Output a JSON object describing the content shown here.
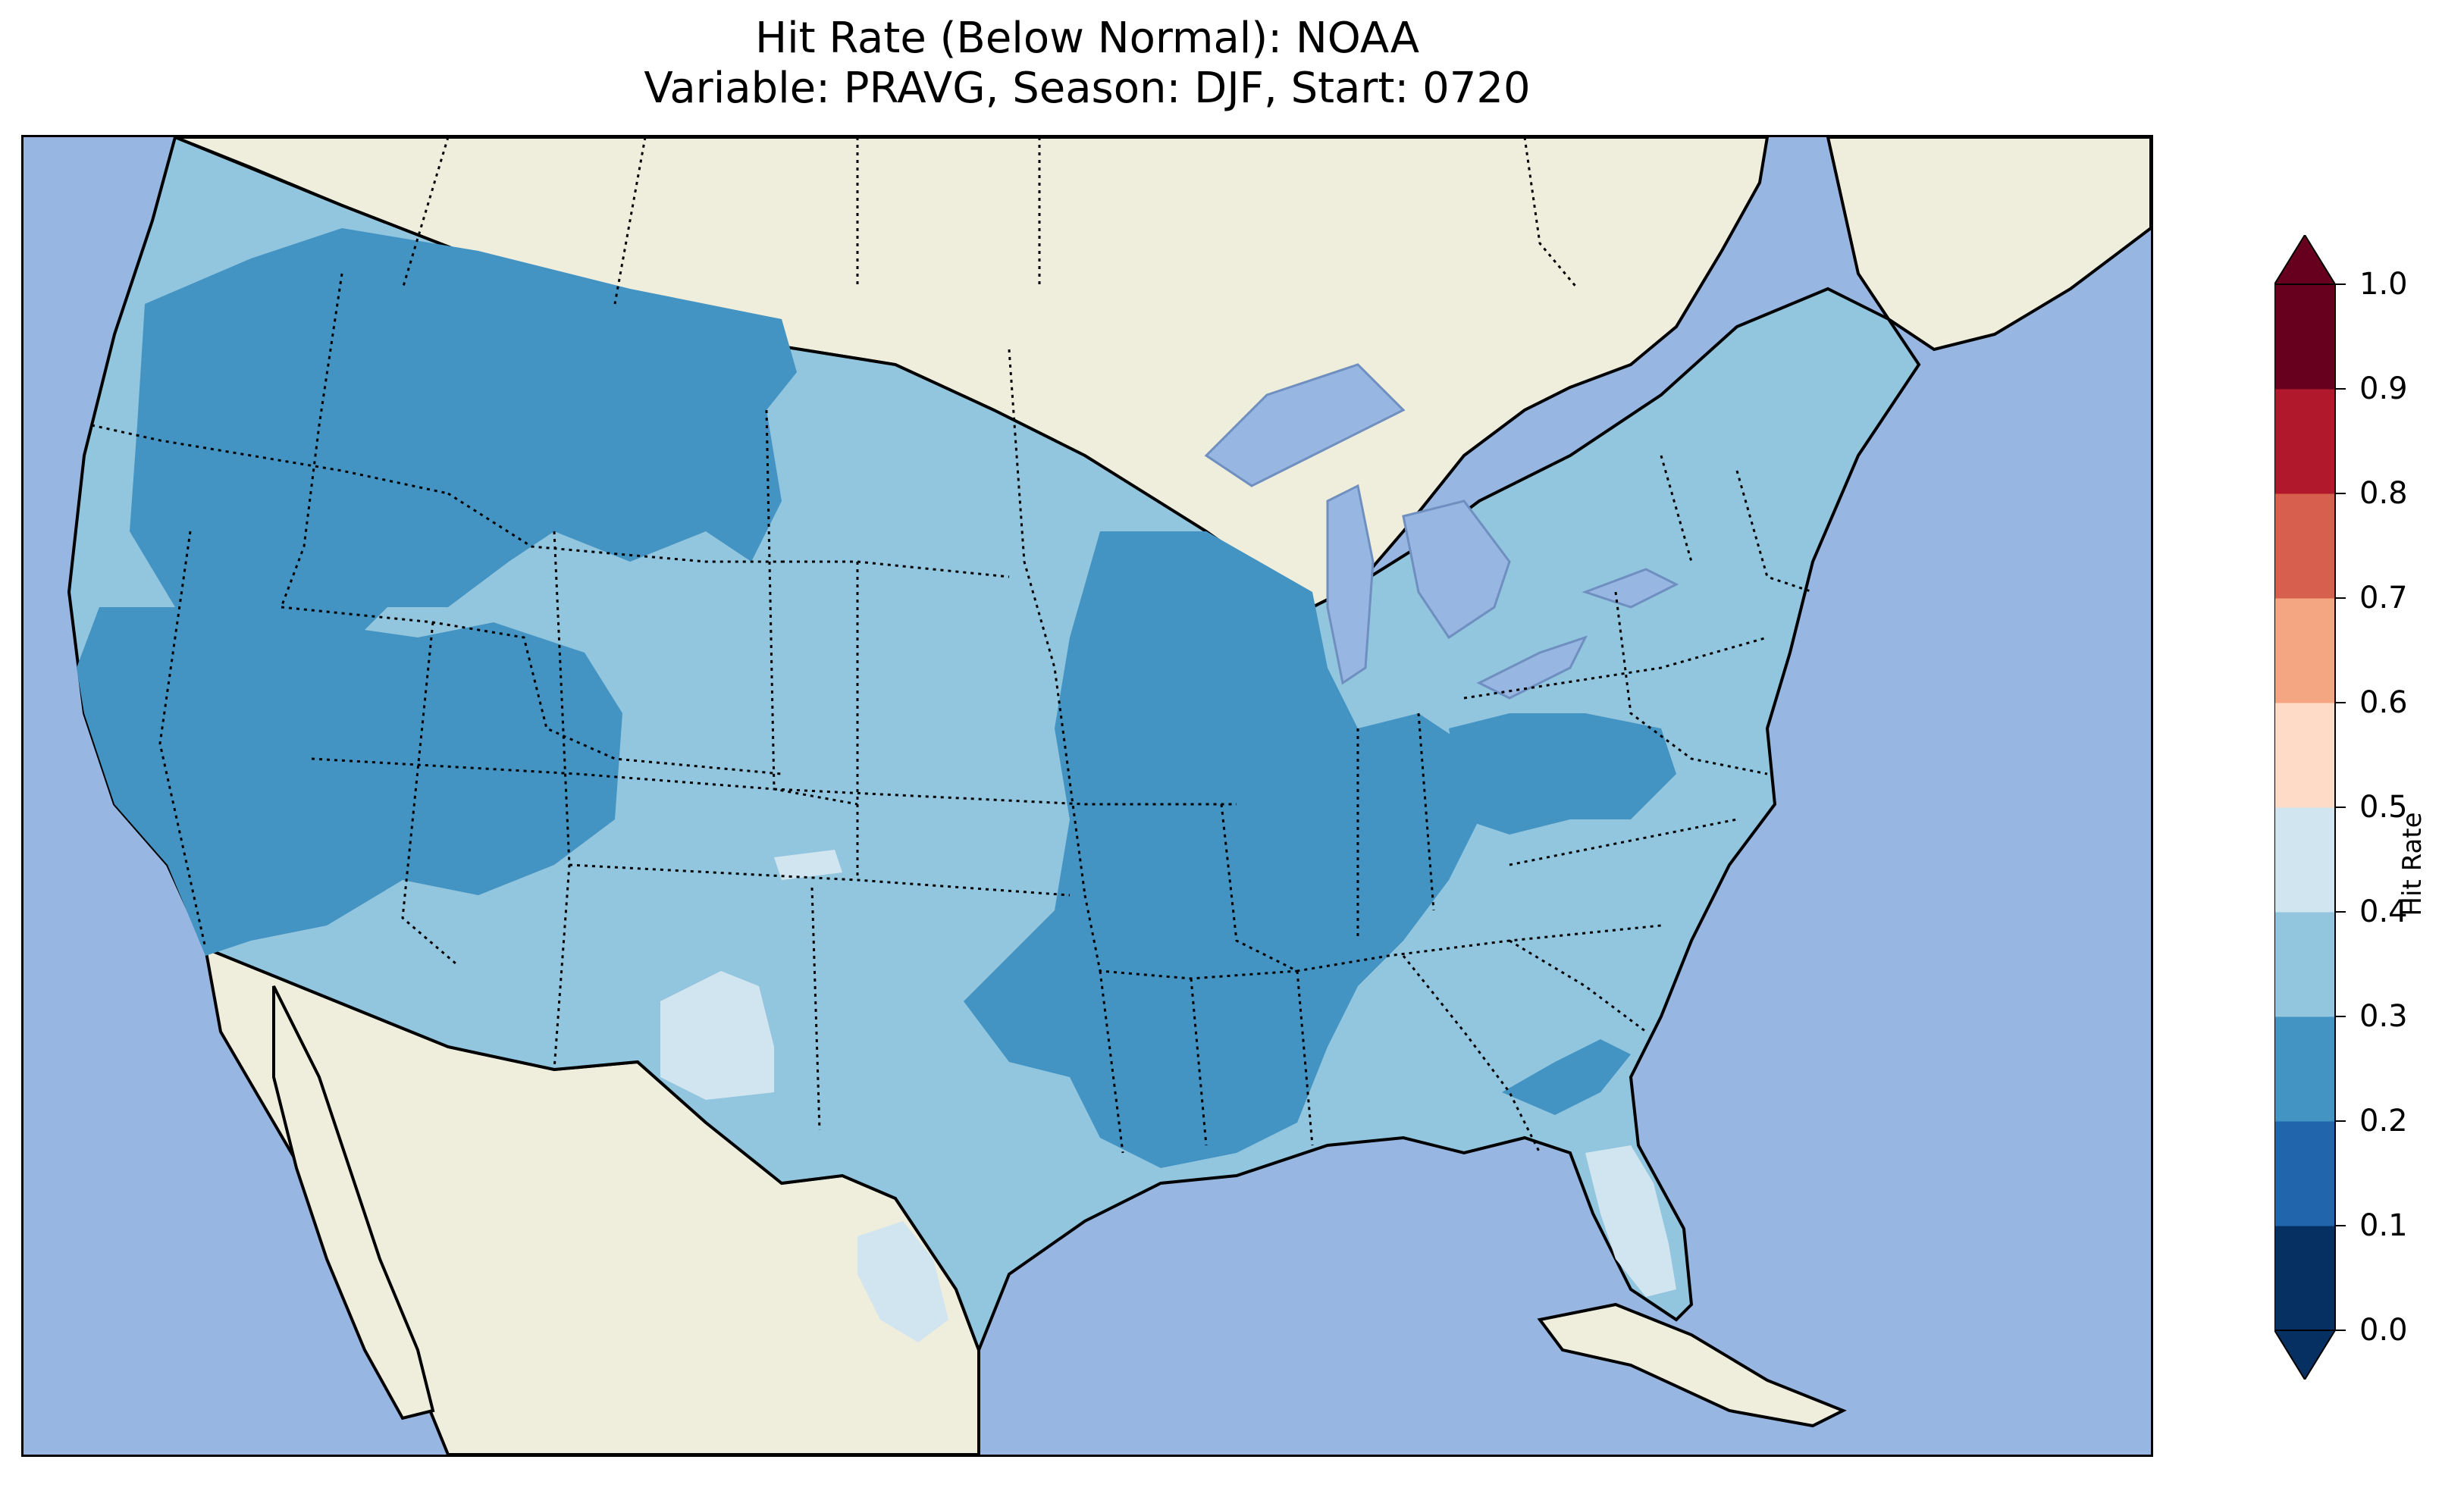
{
  "title": {
    "line1": "Hit Rate (Below Normal): NOAA",
    "line2": "Variable: PRAVG, Season: DJF, Start: 0720"
  },
  "map": {
    "ocean_color": "#97b6e1",
    "land_color": "#efeddb",
    "region_labels": [],
    "hit_rate_regions": [
      {
        "name": "Pacific Northwest coast",
        "range": "0.3-0.4"
      },
      {
        "name": "Interior Northwest / Montana",
        "range": "0.2-0.3"
      },
      {
        "name": "Great Basin / Nevada",
        "range": "0.2-0.3"
      },
      {
        "name": "Upper Midwest / Mississippi Valley",
        "range": "0.2-0.3"
      },
      {
        "name": "Great Plains",
        "range": "0.3-0.4"
      },
      {
        "name": "Southwest",
        "range": "0.3-0.4"
      },
      {
        "name": "New Mexico pocket",
        "range": "0.4-0.5"
      },
      {
        "name": "South Texas",
        "range": "0.4-0.5"
      },
      {
        "name": "Florida peninsula",
        "range": "0.4-0.5"
      },
      {
        "name": "Northeast",
        "range": "0.3-0.4"
      }
    ]
  },
  "colorbar": {
    "label": "Hit Rate",
    "ticks": [
      "0.0",
      "0.1",
      "0.2",
      "0.3",
      "0.4",
      "0.5",
      "0.6",
      "0.7",
      "0.8",
      "0.9",
      "1.0"
    ],
    "bins": [
      {
        "range": "0.0-0.1",
        "color": "#053061"
      },
      {
        "range": "0.1-0.2",
        "color": "#2166ac"
      },
      {
        "range": "0.2-0.3",
        "color": "#4393c3"
      },
      {
        "range": "0.3-0.4",
        "color": "#92c5de"
      },
      {
        "range": "0.4-0.5",
        "color": "#d1e5f0"
      },
      {
        "range": "0.5-0.6",
        "color": "#fddbc7"
      },
      {
        "range": "0.6-0.7",
        "color": "#f4a582"
      },
      {
        "range": "0.7-0.8",
        "color": "#d6604d"
      },
      {
        "range": "0.8-0.9",
        "color": "#b2182b"
      },
      {
        "range": "0.9-1.0",
        "color": "#67001f"
      }
    ],
    "extend": "both"
  }
}
